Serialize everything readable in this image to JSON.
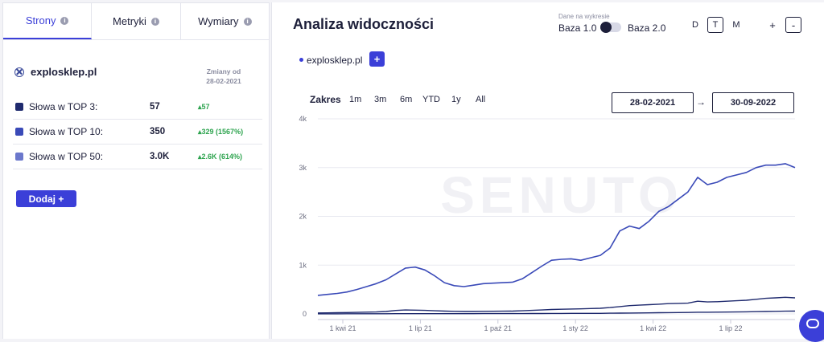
{
  "tabs": [
    {
      "label": "Strony",
      "active": true
    },
    {
      "label": "Metryki",
      "active": false
    },
    {
      "label": "Wymiary",
      "active": false
    }
  ],
  "domain": {
    "name": "explosklep.pl",
    "changes_label": "Zmiany od",
    "changes_date": "28-02-2021"
  },
  "stats": [
    {
      "label": "Słowa w TOP 3:",
      "value": "57",
      "change": "57",
      "color": "#1f2a6e"
    },
    {
      "label": "Słowa w TOP 10:",
      "value": "350",
      "change": "329 (1567%)",
      "color": "#3a4ab8"
    },
    {
      "label": "Słowa w TOP 50:",
      "value": "3.0K",
      "change": "2.6K (614%)",
      "color": "#6b78cc"
    }
  ],
  "add_button": "Dodaj +",
  "panel": {
    "title": "Analiza widoczności",
    "base_caption": "Dane na wykresie",
    "base1": "Baza 1.0",
    "base2": "Baza 2.0",
    "granularity": [
      "D",
      "T",
      "M"
    ],
    "granularity_selected": "T",
    "zoom_in": "+",
    "zoom_out": "-"
  },
  "legend": {
    "name": "explosklep.pl",
    "add": "+",
    "color": "#3b3fd8"
  },
  "range": {
    "label": "Zakres",
    "options": [
      "1m",
      "3m",
      "6m",
      "YTD",
      "1y",
      "All"
    ],
    "from": "28-02-2021",
    "to": "30-09-2022",
    "arrow": "→"
  },
  "chart_data": {
    "type": "line",
    "watermark": "SENUTO",
    "yticks": [
      "0",
      "1k",
      "2k",
      "3k",
      "4k"
    ],
    "ylim": [
      0,
      4000
    ],
    "xticks": [
      "1 kwi 21",
      "1 lip 21",
      "1 paź 21",
      "1 sty 22",
      "1 kwi 22",
      "1 lip 22"
    ],
    "series": [
      {
        "color": "#3a4ab8",
        "values": [
          380,
          400,
          420,
          450,
          500,
          560,
          620,
          700,
          820,
          940,
          960,
          900,
          780,
          640,
          580,
          560,
          590,
          620,
          630,
          640,
          650,
          720,
          850,
          980,
          1100,
          1120,
          1130,
          1100,
          1150,
          1200,
          1350,
          1700,
          1800,
          1750,
          1900,
          2100,
          2200,
          2350,
          2500,
          2800,
          2650,
          2700,
          2800,
          2850,
          2900,
          3000,
          3050,
          3050,
          3080,
          3000
        ]
      },
      {
        "color": "#1f2a6e",
        "values": [
          20,
          22,
          24,
          28,
          32,
          36,
          40,
          50,
          70,
          80,
          78,
          72,
          64,
          58,
          52,
          50,
          50,
          52,
          54,
          56,
          58,
          64,
          72,
          80,
          90,
          96,
          100,
          104,
          110,
          116,
          130,
          150,
          170,
          180,
          190,
          200,
          210,
          215,
          220,
          260,
          245,
          250,
          260,
          270,
          280,
          300,
          320,
          330,
          340,
          330
        ]
      },
      {
        "color": "#1f2a6e",
        "values": [
          2,
          2,
          2,
          3,
          3,
          3,
          4,
          4,
          5,
          5,
          5,
          5,
          5,
          5,
          5,
          5,
          5,
          6,
          6,
          6,
          6,
          7,
          8,
          9,
          10,
          10,
          11,
          11,
          12,
          12,
          14,
          16,
          18,
          20,
          22,
          24,
          26,
          28,
          30,
          34,
          34,
          36,
          38,
          40,
          42,
          46,
          50,
          52,
          56,
          57
        ]
      }
    ]
  }
}
